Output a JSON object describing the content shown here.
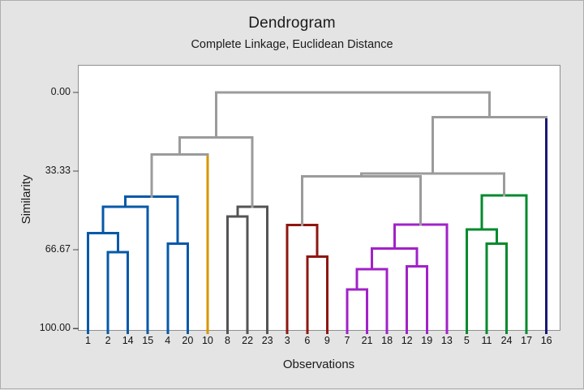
{
  "chart_data": {
    "type": "dendrogram",
    "title": "Dendrogram",
    "subtitle": "Complete Linkage, Euclidean Distance",
    "xlabel": "Observations",
    "ylabel": "Similarity",
    "y_axis": {
      "tick_labels": [
        "0.00",
        "33.33",
        "66.67",
        "100.00"
      ],
      "tick_values": [
        0,
        33.33,
        66.67,
        100
      ],
      "range": [
        0,
        100
      ],
      "inverted": true,
      "grid": false
    },
    "legend": "none",
    "colors": {
      "blue": "#0659A9",
      "orange": "#D89600",
      "darkgray": "#545454",
      "red": "#8E1710",
      "magenta": "#A122C8",
      "green": "#038A2E",
      "navy": "#191975",
      "gray": "#9B9B9B"
    },
    "leaves": [
      {
        "label": "1",
        "color": "blue"
      },
      {
        "label": "2",
        "color": "blue"
      },
      {
        "label": "14",
        "color": "blue"
      },
      {
        "label": "15",
        "color": "blue"
      },
      {
        "label": "4",
        "color": "blue"
      },
      {
        "label": "20",
        "color": "blue"
      },
      {
        "label": "10",
        "color": "orange"
      },
      {
        "label": "8",
        "color": "darkgray"
      },
      {
        "label": "22",
        "color": "darkgray"
      },
      {
        "label": "23",
        "color": "darkgray"
      },
      {
        "label": "3",
        "color": "red"
      },
      {
        "label": "6",
        "color": "red"
      },
      {
        "label": "9",
        "color": "red"
      },
      {
        "label": "7",
        "color": "magenta"
      },
      {
        "label": "21",
        "color": "magenta"
      },
      {
        "label": "18",
        "color": "magenta"
      },
      {
        "label": "12",
        "color": "magenta"
      },
      {
        "label": "19",
        "color": "magenta"
      },
      {
        "label": "13",
        "color": "magenta"
      },
      {
        "label": "5",
        "color": "green"
      },
      {
        "label": "11",
        "color": "green"
      },
      {
        "label": "24",
        "color": "green"
      },
      {
        "label": "17",
        "color": "green"
      },
      {
        "label": "16",
        "color": "navy"
      }
    ],
    "merges": [
      {
        "id": "M1",
        "a": "L1",
        "b": "L2",
        "similarity": 67.7,
        "color": "blue"
      },
      {
        "id": "M2",
        "a": "L4",
        "b": "L5",
        "similarity": 64.0,
        "color": "blue"
      },
      {
        "id": "M3",
        "a": "L0",
        "b": "M1",
        "similarity": 59.5,
        "color": "blue"
      },
      {
        "id": "M4",
        "a": "M3",
        "b": "L3",
        "similarity": 48.5,
        "color": "blue"
      },
      {
        "id": "M5",
        "a": "M4",
        "b": "M2",
        "similarity": 44.2,
        "color": "blue"
      },
      {
        "id": "M7",
        "a": "L7",
        "b": "L8",
        "similarity": 52.6,
        "color": "darkgray"
      },
      {
        "id": "M8",
        "a": "M7",
        "b": "L9",
        "similarity": 48.5,
        "color": "darkgray"
      },
      {
        "id": "M6",
        "a": "M5",
        "b": "L6",
        "similarity": 26.3,
        "color": "gray"
      },
      {
        "id": "M9",
        "a": "M6",
        "b": "M8",
        "similarity": 19.0,
        "color": "gray"
      },
      {
        "id": "M10",
        "a": "L11",
        "b": "L12",
        "similarity": 69.5,
        "color": "red"
      },
      {
        "id": "M11",
        "a": "L10",
        "b": "M10",
        "similarity": 56.1,
        "color": "red"
      },
      {
        "id": "M12",
        "a": "L13",
        "b": "L14",
        "similarity": 83.5,
        "color": "magenta"
      },
      {
        "id": "M13",
        "a": "M12",
        "b": "L15",
        "similarity": 74.8,
        "color": "magenta"
      },
      {
        "id": "M14",
        "a": "L16",
        "b": "L17",
        "similarity": 73.7,
        "color": "magenta"
      },
      {
        "id": "M15",
        "a": "M13",
        "b": "M14",
        "similarity": 66.1,
        "color": "magenta"
      },
      {
        "id": "M16",
        "a": "M15",
        "b": "L18",
        "similarity": 56.0,
        "color": "magenta"
      },
      {
        "id": "M17",
        "a": "M11",
        "b": "M16",
        "similarity": 35.6,
        "color": "gray"
      },
      {
        "id": "M18",
        "a": "L20",
        "b": "L21",
        "similarity": 64.0,
        "color": "green"
      },
      {
        "id": "M19",
        "a": "L19",
        "b": "M18",
        "similarity": 58.0,
        "color": "green"
      },
      {
        "id": "M20",
        "a": "M19",
        "b": "L22",
        "similarity": 43.6,
        "color": "green"
      },
      {
        "id": "M21",
        "a": "M17",
        "b": "M20",
        "similarity": 34.4,
        "color": "gray"
      },
      {
        "id": "M22",
        "a": "M21",
        "b": "L23",
        "similarity": 10.4,
        "color": "gray"
      },
      {
        "id": "M23",
        "a": "M9",
        "b": "M22",
        "similarity": 0.0,
        "color": "gray"
      }
    ]
  }
}
